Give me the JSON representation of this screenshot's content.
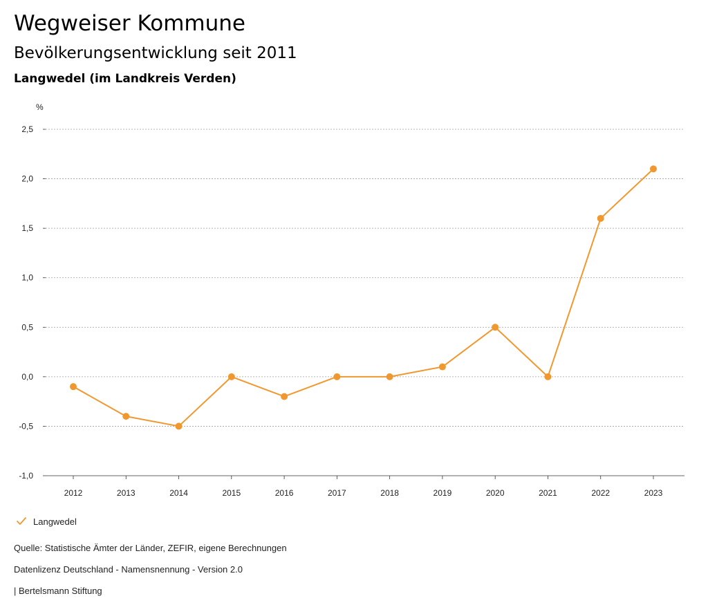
{
  "header": {
    "title": "Wegweiser Kommune",
    "subtitle": "Bevölkerungsentwicklung seit 2011",
    "region": "Langwedel (im Landkreis Verden)"
  },
  "colors": {
    "series": "#F0982F",
    "grid": "#9e9e9e",
    "axis": "#333333"
  },
  "chart_data": {
    "type": "line",
    "x": [
      "2012",
      "2013",
      "2014",
      "2015",
      "2016",
      "2017",
      "2018",
      "2019",
      "2020",
      "2021",
      "2022",
      "2023"
    ],
    "series": [
      {
        "name": "Langwedel",
        "values": [
          -0.1,
          -0.4,
          -0.5,
          0.0,
          -0.2,
          0.0,
          0.0,
          0.1,
          0.5,
          0.0,
          1.6,
          2.1
        ]
      }
    ],
    "ylabel": "%",
    "ylim": [
      -1.0,
      2.5
    ],
    "yticks": [
      2.5,
      2.0,
      1.5,
      1.0,
      0.5,
      0.0,
      -0.5,
      -1.0
    ],
    "ytick_labels": [
      "2,5",
      "2,0",
      "1,5",
      "1,0",
      "0,5",
      "0,0",
      "-0,5",
      "-1,0"
    ],
    "grid": true,
    "legend": "bottom-left"
  },
  "legend": {
    "label": "Langwedel",
    "icon": "check-icon"
  },
  "footer": {
    "source": "Quelle: Statistische Ämter der Länder, ZEFIR, eigene Berechnungen",
    "license": "Datenlizenz Deutschland - Namensnennung - Version 2.0",
    "publisher": "| Bertelsmann Stiftung"
  }
}
